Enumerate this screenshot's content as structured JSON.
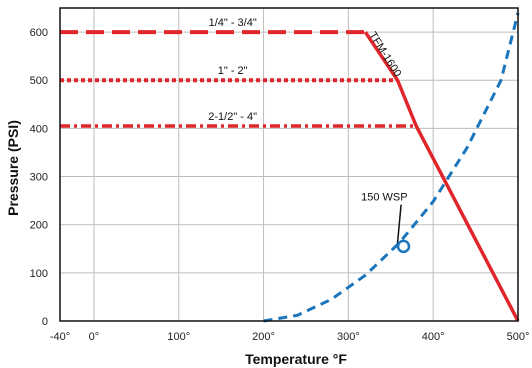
{
  "chart_data": {
    "type": "line",
    "xlabel": "Temperature °F",
    "ylabel": "Pressure (PSI)",
    "xlim": [
      -40,
      500
    ],
    "ylim": [
      0,
      650
    ],
    "grid": true,
    "x_ticks": [
      -40,
      0,
      100,
      200,
      300,
      400,
      500
    ],
    "x_tick_labels": [
      "-40°",
      "0°",
      "100°",
      "200°",
      "300°",
      "400°",
      "500°"
    ],
    "y_ticks": [
      0,
      100,
      200,
      300,
      400,
      500,
      600
    ],
    "y_tick_labels": [
      "0",
      "100",
      "200",
      "300",
      "400",
      "500",
      "600"
    ],
    "series": [
      {
        "name": "1/4\" - 3/4\"",
        "style": "long-dash",
        "color": "#e0262b",
        "x": [
          -40,
          320
        ],
        "y": [
          600,
          600
        ]
      },
      {
        "name": "1\" - 2\"",
        "style": "dotted",
        "color": "#e0262b",
        "x": [
          -40,
          358
        ],
        "y": [
          500,
          500
        ]
      },
      {
        "name": "2-1/2\" - 4\"",
        "style": "dash-dot",
        "color": "#e0262b",
        "x": [
          -40,
          380
        ],
        "y": [
          405,
          405
        ]
      },
      {
        "name": "TFM-1600",
        "style": "solid",
        "color": "#e0262b",
        "x": [
          320,
          358,
          380,
          500
        ],
        "y": [
          600,
          500,
          405,
          0
        ]
      },
      {
        "name": "150 WSP",
        "style": "dashed",
        "color": "#1b75bc",
        "x": [
          200,
          240,
          280,
          320,
          360,
          400,
          440,
          480,
          500
        ],
        "y": [
          0,
          12,
          45,
          95,
          162,
          248,
          360,
          500,
          640
        ]
      }
    ],
    "annotations": [
      {
        "text": "1/4\" - 3/4\"",
        "x": 140,
        "y": 600
      },
      {
        "text": "1\" - 2\"",
        "x": 140,
        "y": 500
      },
      {
        "text": "2-1/2\" - 4\"",
        "x": 140,
        "y": 405
      },
      {
        "text": "TFM-1600",
        "x": 340,
        "y": 550
      },
      {
        "text": "150 WSP",
        "x": 315,
        "y": 250
      }
    ],
    "marker": {
      "series": "150 WSP",
      "x": 365,
      "y": 155
    }
  }
}
